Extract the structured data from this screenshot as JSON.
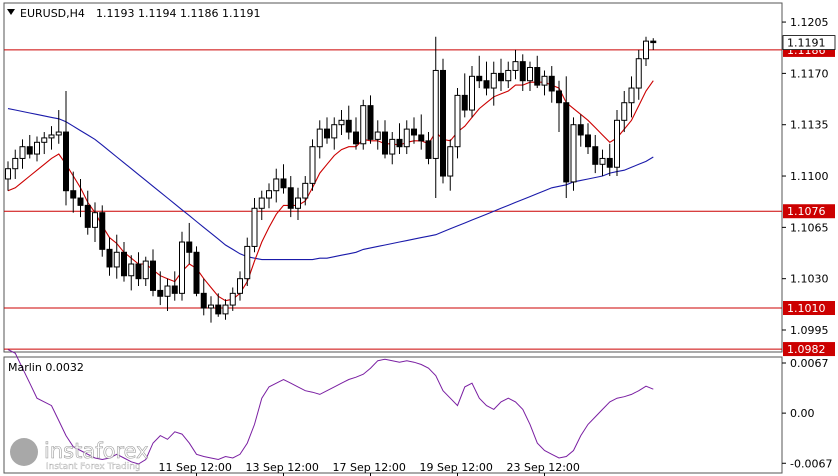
{
  "header": {
    "symbol": "EURUSD,H4",
    "ohlc": "1.1193 1.1194 1.1186 1.1191"
  },
  "colors": {
    "background": "#ffffff",
    "candle": "#000000",
    "fast_ma": "#cc0000",
    "slow_ma": "#1a1aaa",
    "level_line": "#cc0000",
    "price_label_bg": "#cc0000",
    "oscillator": "#7a1fa2"
  },
  "chart_data": [
    {
      "type": "candlestick",
      "panel": "main",
      "ylim": [
        1.098,
        1.1218
      ],
      "y_ticks": [
        "1.1205",
        "1.1170",
        "1.1135",
        "1.1100",
        "1.1065",
        "1.1030",
        "1.0995"
      ],
      "x_ticks": [
        "11 Sep 12:00",
        "13 Sep 12:00",
        "17 Sep 12:00",
        "19 Sep 12:00",
        "23 Sep 12:00"
      ],
      "horizontal_levels": [
        "1.1186",
        "1.1076",
        "1.1010",
        "1.0982"
      ],
      "current_price": "1.1191",
      "candles": [
        [
          1.1098,
          1.111,
          1.109,
          1.1105
        ],
        [
          1.1105,
          1.1118,
          1.1098,
          1.1112
        ],
        [
          1.1112,
          1.1125,
          1.1105,
          1.112
        ],
        [
          1.112,
          1.1128,
          1.1112,
          1.1115
        ],
        [
          1.1115,
          1.1127,
          1.111,
          1.1123
        ],
        [
          1.1123,
          1.113,
          1.1115,
          1.1126
        ],
        [
          1.1126,
          1.1134,
          1.1118,
          1.1128
        ],
        [
          1.1128,
          1.1145,
          1.1122,
          1.113
        ],
        [
          1.113,
          1.1158,
          1.108,
          1.109
        ],
        [
          1.109,
          1.1103,
          1.1075,
          1.1085
        ],
        [
          1.1085,
          1.1098,
          1.1072,
          1.108
        ],
        [
          1.108,
          1.109,
          1.106,
          1.1065
        ],
        [
          1.1065,
          1.1082,
          1.1055,
          1.1075
        ],
        [
          1.1075,
          1.108,
          1.1045,
          1.105
        ],
        [
          1.105,
          1.1058,
          1.1032,
          1.1038
        ],
        [
          1.1038,
          1.106,
          1.103,
          1.1048
        ],
        [
          1.1048,
          1.1055,
          1.1028,
          1.1032
        ],
        [
          1.1032,
          1.1046,
          1.1022,
          1.104
        ],
        [
          1.104,
          1.1048,
          1.1025,
          1.103
        ],
        [
          1.103,
          1.1045,
          1.1025,
          1.1042
        ],
        [
          1.1042,
          1.105,
          1.1018,
          1.1022
        ],
        [
          1.1022,
          1.1035,
          1.1012,
          1.1018
        ],
        [
          1.1018,
          1.103,
          1.1008,
          1.1025
        ],
        [
          1.1025,
          1.1035,
          1.1015,
          1.102
        ],
        [
          1.102,
          1.1062,
          1.1015,
          1.1055
        ],
        [
          1.1055,
          1.1068,
          1.104,
          1.1048
        ],
        [
          1.1048,
          1.1052,
          1.1018,
          1.102
        ],
        [
          1.102,
          1.103,
          1.1005,
          1.101
        ],
        [
          1.101,
          1.1018,
          1.1,
          1.1012
        ],
        [
          1.1012,
          1.102,
          1.1004,
          1.1006
        ],
        [
          1.1006,
          1.1016,
          1.1002,
          1.1012
        ],
        [
          1.1012,
          1.1024,
          1.1008,
          1.102
        ],
        [
          1.102,
          1.1035,
          1.1015,
          1.103
        ],
        [
          1.103,
          1.1058,
          1.1025,
          1.1052
        ],
        [
          1.1052,
          1.1085,
          1.1048,
          1.1078
        ],
        [
          1.1078,
          1.109,
          1.107,
          1.1085
        ],
        [
          1.1085,
          1.1095,
          1.1078,
          1.109
        ],
        [
          1.109,
          1.1105,
          1.1082,
          1.1098
        ],
        [
          1.1098,
          1.1108,
          1.1088,
          1.1092
        ],
        [
          1.1092,
          1.11,
          1.1072,
          1.1078
        ],
        [
          1.1078,
          1.1092,
          1.107,
          1.1085
        ],
        [
          1.1085,
          1.11,
          1.108,
          1.1095
        ],
        [
          1.1095,
          1.1125,
          1.109,
          1.112
        ],
        [
          1.112,
          1.1138,
          1.1112,
          1.1132
        ],
        [
          1.1132,
          1.114,
          1.1122,
          1.1126
        ],
        [
          1.1126,
          1.114,
          1.1118,
          1.1135
        ],
        [
          1.1135,
          1.1145,
          1.1128,
          1.1138
        ],
        [
          1.1138,
          1.1148,
          1.1125,
          1.113
        ],
        [
          1.113,
          1.114,
          1.1118,
          1.1122
        ],
        [
          1.1122,
          1.1152,
          1.1118,
          1.1148
        ],
        [
          1.1148,
          1.1155,
          1.1122,
          1.1125
        ],
        [
          1.1125,
          1.1138,
          1.1118,
          1.113
        ],
        [
          1.113,
          1.1138,
          1.1112,
          1.1115
        ],
        [
          1.1115,
          1.113,
          1.1108,
          1.1125
        ],
        [
          1.1125,
          1.1136,
          1.1115,
          1.112
        ],
        [
          1.112,
          1.1138,
          1.1115,
          1.1132
        ],
        [
          1.1132,
          1.114,
          1.1122,
          1.1128
        ],
        [
          1.1128,
          1.1142,
          1.1118,
          1.1124
        ],
        [
          1.1124,
          1.113,
          1.1108,
          1.1112
        ],
        [
          1.1112,
          1.1195,
          1.1085,
          1.1172
        ],
        [
          1.1172,
          1.118,
          1.1095,
          1.11
        ],
        [
          1.11,
          1.1125,
          1.109,
          1.112
        ],
        [
          1.112,
          1.116,
          1.1112,
          1.1155
        ],
        [
          1.1155,
          1.117,
          1.114,
          1.1145
        ],
        [
          1.1145,
          1.1175,
          1.114,
          1.1168
        ],
        [
          1.1168,
          1.1182,
          1.116,
          1.1165
        ],
        [
          1.1165,
          1.1178,
          1.1155,
          1.116
        ],
        [
          1.116,
          1.1178,
          1.1148,
          1.117
        ],
        [
          1.117,
          1.118,
          1.1158,
          1.1165
        ],
        [
          1.1165,
          1.1178,
          1.116,
          1.1172
        ],
        [
          1.1172,
          1.1186,
          1.1166,
          1.1178
        ],
        [
          1.1178,
          1.1183,
          1.1158,
          1.1165
        ],
        [
          1.1165,
          1.1178,
          1.1158,
          1.1174
        ],
        [
          1.1174,
          1.1182,
          1.116,
          1.1162
        ],
        [
          1.1162,
          1.1172,
          1.1155,
          1.1168
        ],
        [
          1.1168,
          1.1175,
          1.115,
          1.1158
        ],
        [
          1.1158,
          1.1165,
          1.113,
          1.115
        ],
        [
          1.115,
          1.1168,
          1.1085,
          1.1096
        ],
        [
          1.1096,
          1.114,
          1.109,
          1.1135
        ],
        [
          1.1135,
          1.1142,
          1.112,
          1.1128
        ],
        [
          1.1128,
          1.1136,
          1.1115,
          1.112
        ],
        [
          1.112,
          1.1128,
          1.1102,
          1.1108
        ],
        [
          1.1108,
          1.1118,
          1.11,
          1.1112
        ],
        [
          1.1112,
          1.1122,
          1.11,
          1.1106
        ],
        [
          1.1106,
          1.1145,
          1.11,
          1.1138
        ],
        [
          1.1138,
          1.1158,
          1.113,
          1.115
        ],
        [
          1.115,
          1.1168,
          1.114,
          1.116
        ],
        [
          1.116,
          1.1186,
          1.1152,
          1.118
        ],
        [
          1.118,
          1.1195,
          1.1175,
          1.1192
        ],
        [
          1.1192,
          1.1194,
          1.1186,
          1.1191
        ]
      ],
      "fast_ma": [
        1.109,
        1.1092,
        1.1096,
        1.11,
        1.1104,
        1.1108,
        1.1112,
        1.1115,
        1.1108,
        1.11,
        1.1092,
        1.1082,
        1.1075,
        1.1066,
        1.1058,
        1.1054,
        1.1048,
        1.1044,
        1.104,
        1.104,
        1.1036,
        1.1032,
        1.103,
        1.1028,
        1.1035,
        1.104,
        1.1037,
        1.103,
        1.1024,
        1.1018,
        1.1015,
        1.1016,
        1.102,
        1.1028,
        1.1042,
        1.1055,
        1.1065,
        1.1074,
        1.108,
        1.108,
        1.108,
        1.1083,
        1.1092,
        1.1102,
        1.1108,
        1.1114,
        1.1118,
        1.112,
        1.112,
        1.1125,
        1.1124,
        1.1124,
        1.1122,
        1.1122,
        1.1121,
        1.1123,
        1.1124,
        1.1124,
        1.1122,
        1.113,
        1.1125,
        1.1124,
        1.113,
        1.1134,
        1.114,
        1.1146,
        1.115,
        1.1154,
        1.1156,
        1.1158,
        1.1162,
        1.1162,
        1.1164,
        1.1164,
        1.1164,
        1.1162,
        1.116,
        1.115,
        1.1146,
        1.1142,
        1.1138,
        1.1133,
        1.1128,
        1.1123,
        1.1126,
        1.1132,
        1.1138,
        1.1148,
        1.1158,
        1.1165
      ],
      "slow_ma": [
        1.1146,
        1.1145,
        1.1144,
        1.1143,
        1.1142,
        1.1141,
        1.114,
        1.1139,
        1.1137,
        1.1134,
        1.1131,
        1.1128,
        1.1125,
        1.1121,
        1.1117,
        1.1113,
        1.1109,
        1.1105,
        1.1101,
        1.1097,
        1.1093,
        1.1089,
        1.1085,
        1.1081,
        1.1077,
        1.1073,
        1.1069,
        1.1065,
        1.1061,
        1.1057,
        1.1053,
        1.105,
        1.1047,
        1.1045,
        1.1044,
        1.1043,
        1.1043,
        1.1043,
        1.1043,
        1.1043,
        1.1043,
        1.1043,
        1.1043,
        1.1044,
        1.1044,
        1.1045,
        1.1046,
        1.1047,
        1.1048,
        1.105,
        1.1051,
        1.1052,
        1.1053,
        1.1054,
        1.1055,
        1.1056,
        1.1057,
        1.1058,
        1.1059,
        1.106,
        1.1062,
        1.1064,
        1.1066,
        1.1068,
        1.107,
        1.1072,
        1.1074,
        1.1076,
        1.1078,
        1.108,
        1.1082,
        1.1084,
        1.1086,
        1.1088,
        1.109,
        1.1092,
        1.1093,
        1.1094,
        1.1096,
        1.1097,
        1.1098,
        1.1099,
        1.11,
        1.1102,
        1.1103,
        1.1104,
        1.1106,
        1.1108,
        1.111,
        1.1113
      ]
    },
    {
      "type": "line",
      "panel": "oscillator",
      "title": "Marlin 0.0032",
      "ylim": [
        -0.008,
        0.0075
      ],
      "y_ticks": [
        "0.0067",
        "0.00",
        "-0.0067"
      ],
      "values": [
        0.0085,
        0.008,
        0.006,
        0.004,
        0.002,
        0.0015,
        0.001,
        -0.001,
        -0.003,
        -0.0045,
        -0.005,
        -0.0055,
        -0.006,
        -0.0062,
        -0.006,
        -0.0055,
        -0.006,
        -0.0065,
        -0.0068,
        -0.0062,
        -0.004,
        -0.003,
        -0.0035,
        -0.0025,
        -0.0028,
        -0.004,
        -0.0055,
        -0.0058,
        -0.006,
        -0.0062,
        -0.0058,
        -0.006,
        -0.0055,
        -0.004,
        -0.0015,
        0.002,
        0.0035,
        0.004,
        0.0045,
        0.004,
        0.0035,
        0.003,
        0.0028,
        0.0025,
        0.003,
        0.0035,
        0.004,
        0.0045,
        0.0048,
        0.0052,
        0.006,
        0.007,
        0.0072,
        0.007,
        0.0068,
        0.007,
        0.0068,
        0.0065,
        0.006,
        0.005,
        0.003,
        0.002,
        0.001,
        0.0035,
        0.004,
        0.002,
        0.001,
        0.0005,
        0.0015,
        0.002,
        0.0015,
        0.0005,
        -0.0015,
        -0.004,
        -0.005,
        -0.0055,
        -0.006,
        -0.0058,
        -0.005,
        -0.003,
        -0.0015,
        -0.0005,
        0.0005,
        0.0015,
        0.002,
        0.0022,
        0.0025,
        0.003,
        0.0036,
        0.0032
      ]
    }
  ],
  "watermark": {
    "brand": "instaforex",
    "tagline": "Instant Forex Trading"
  }
}
